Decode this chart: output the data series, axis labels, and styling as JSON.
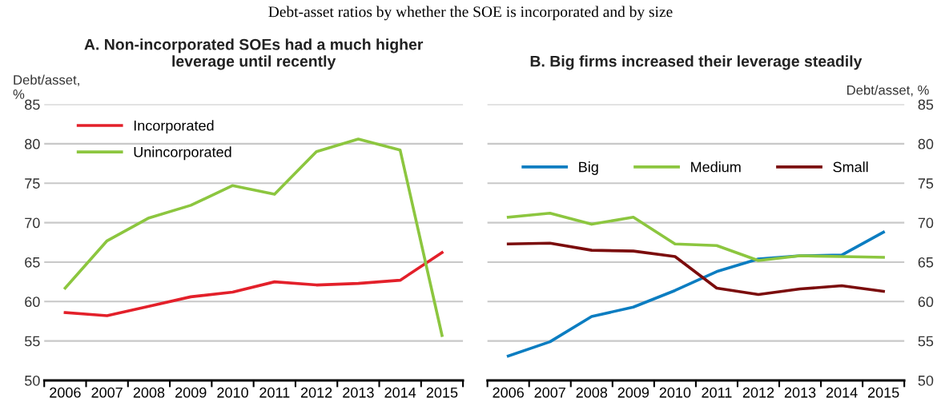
{
  "chart_data": [
    {
      "type": "line",
      "title": "A. Non-incorporated SOEs had a much higher\nleverage until recently",
      "ylabel": "Debt/asset,\n%",
      "categories": [
        "2006",
        "2007",
        "2008",
        "2009",
        "2010",
        "2011",
        "2012",
        "2013",
        "2014",
        "2015"
      ],
      "series": [
        {
          "name": "Incorporated",
          "color": "#e3202a",
          "values": [
            58.6,
            58.2,
            59.4,
            60.6,
            61.2,
            62.5,
            62.1,
            62.3,
            62.7,
            66.2
          ]
        },
        {
          "name": "Unincorporated",
          "color": "#8cc63f",
          "values": [
            61.7,
            67.7,
            70.6,
            72.2,
            74.7,
            73.6,
            79.0,
            80.6,
            79.2,
            55.7
          ]
        }
      ],
      "ylim": [
        50,
        85
      ],
      "yticks": [
        50,
        55,
        60,
        65,
        70,
        75,
        80,
        85
      ],
      "grid": "y",
      "legend": "top left",
      "marker": "none",
      "line_style": "solid"
    },
    {
      "type": "line",
      "title": "B. Big firms increased their leverage steadily",
      "ylabel": "Debt/asset, %",
      "categories": [
        "2006",
        "2007",
        "2008",
        "2009",
        "2010",
        "2011",
        "2012",
        "2013",
        "2014",
        "2015"
      ],
      "series": [
        {
          "name": "Big",
          "color": "#0b7dc1",
          "values": [
            53.1,
            54.9,
            58.1,
            59.3,
            61.4,
            63.8,
            65.4,
            65.8,
            65.9,
            68.8
          ]
        },
        {
          "name": "Medium",
          "color": "#8cc63f",
          "values": [
            70.7,
            71.2,
            69.8,
            70.7,
            67.3,
            67.1,
            65.2,
            65.8,
            65.7,
            65.6
          ]
        },
        {
          "name": "Small",
          "color": "#7b0c0c",
          "values": [
            67.3,
            67.4,
            66.5,
            66.4,
            65.7,
            61.7,
            60.9,
            61.6,
            62.0,
            61.3
          ]
        }
      ],
      "ylim": [
        50,
        85
      ],
      "yticks": [
        50,
        55,
        60,
        65,
        70,
        75,
        80,
        85
      ],
      "grid": "y",
      "legend": "top",
      "marker": "none",
      "line_style": "solid",
      "annotations": [
        "Debt-asset ratios by whether the SOE is incorporated and by size"
      ]
    }
  ]
}
